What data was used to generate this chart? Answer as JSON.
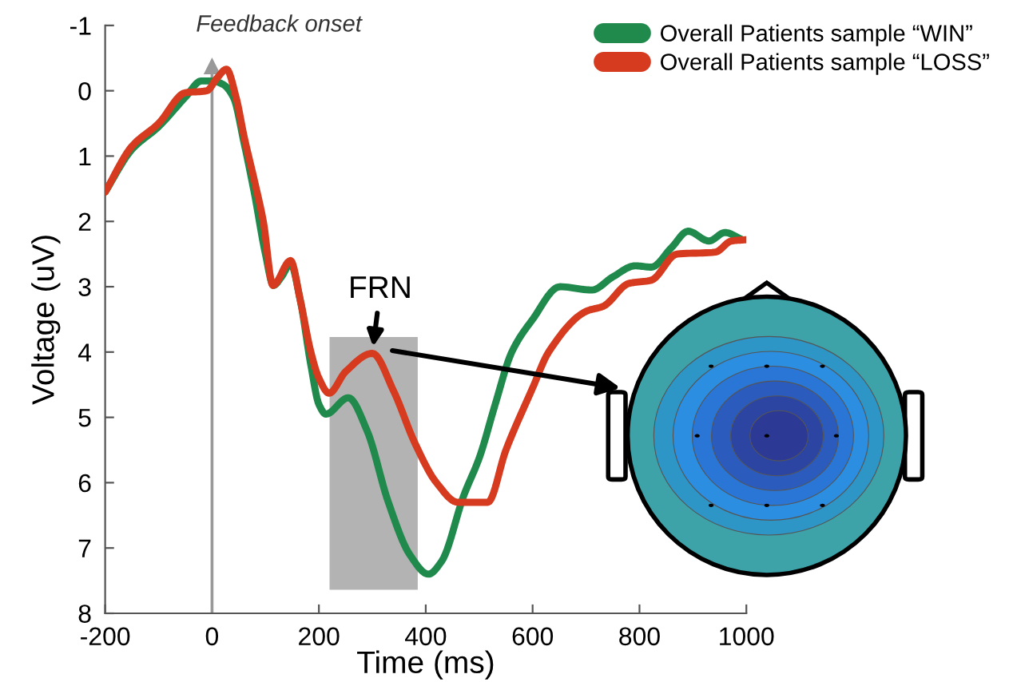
{
  "chart_data": {
    "type": "line",
    "xlabel": "Time (ms)",
    "ylabel": "Voltage (uV)",
    "xlim": [
      -200,
      1000
    ],
    "ylim": [
      8,
      -1
    ],
    "xticks": [
      -200,
      0,
      200,
      400,
      600,
      800,
      1000
    ],
    "yticks": [
      -1,
      0,
      1,
      2,
      3,
      4,
      5,
      6,
      7,
      8
    ],
    "grid": false,
    "legend": "top right",
    "marker": "none",
    "line_style": "solid",
    "series": [
      {
        "name": "Overall Patients sample “WIN”",
        "color": "#1f8a4c",
        "x": [
          -200,
          -150,
          -100,
          -50,
          -20,
          0,
          20,
          40,
          60,
          80,
          100,
          115,
          130,
          147,
          165,
          185,
          200,
          213,
          255,
          290,
          330,
          370,
          405,
          430,
          471,
          501,
          530,
          561,
          600,
          651,
          711,
          750,
          792,
          822,
          860,
          891,
          930,
          960,
          990
        ],
        "values": [
          1.55,
          0.9,
          0.55,
          0.1,
          -0.15,
          -0.15,
          -0.1,
          0.1,
          0.8,
          1.6,
          2.5,
          2.98,
          2.85,
          2.65,
          3.2,
          4.2,
          4.8,
          4.95,
          4.7,
          5.2,
          6.3,
          7.1,
          7.4,
          7.2,
          6.2,
          5.6,
          4.8,
          4.0,
          3.5,
          3.0,
          3.05,
          2.85,
          2.68,
          2.7,
          2.4,
          2.15,
          2.3,
          2.17,
          2.27
        ]
      },
      {
        "name": "Overall Patients sample “LOSS”",
        "color": "#d63a1f",
        "x": [
          -200,
          -150,
          -100,
          -50,
          -10,
          10,
          27,
          45,
          60,
          80,
          96,
          114,
          147,
          165,
          185,
          200,
          219,
          250,
          300,
          340,
          380,
          420,
          460,
          516,
          550,
          600,
          630,
          702,
          732,
          780,
          822,
          870,
          942,
          972,
          1000
        ],
        "values": [
          1.55,
          0.85,
          0.5,
          0.03,
          0.0,
          -0.2,
          -0.33,
          0.1,
          0.7,
          1.4,
          2.0,
          2.98,
          2.6,
          3.2,
          4.0,
          4.4,
          4.63,
          4.3,
          4.02,
          4.6,
          5.4,
          6.0,
          6.3,
          6.3,
          5.5,
          4.55,
          4.0,
          3.37,
          3.3,
          2.95,
          2.9,
          2.5,
          2.47,
          2.3,
          2.28
        ]
      }
    ],
    "ref_lines": [
      {
        "axis": "x",
        "value": 0,
        "label": "Feedback onset",
        "color": "#999999"
      }
    ],
    "bands": [
      {
        "axis": "x",
        "from": 220,
        "to": 385,
        "color": "#b3b3b3"
      }
    ],
    "annotations": [
      {
        "text": "FRN",
        "x": 300,
        "y": 4.02
      }
    ]
  }
}
